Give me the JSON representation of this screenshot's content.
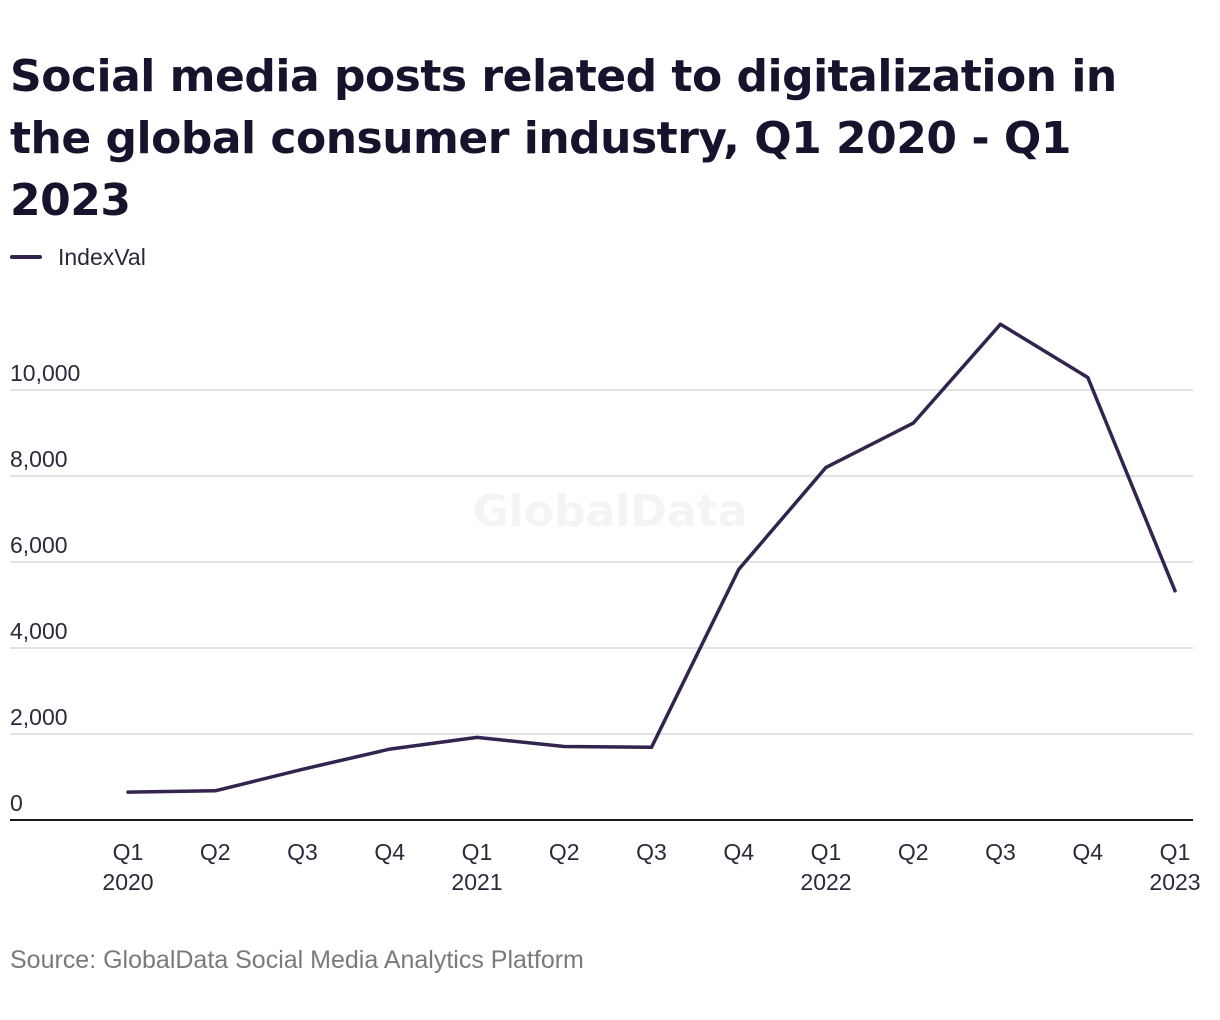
{
  "chart_data": {
    "type": "line",
    "title": "Social media posts related to digitalization in the global consumer industry, Q1 2020 - Q1 2023",
    "categories": [
      [
        "Q1",
        "2020"
      ],
      [
        "Q2",
        ""
      ],
      [
        "Q3",
        ""
      ],
      [
        "Q4",
        ""
      ],
      [
        "Q1",
        "2021"
      ],
      [
        "Q2",
        ""
      ],
      [
        "Q3",
        ""
      ],
      [
        "Q4",
        ""
      ],
      [
        "Q1",
        "2022"
      ],
      [
        "Q2",
        ""
      ],
      [
        "Q3",
        ""
      ],
      [
        "Q4",
        ""
      ],
      [
        "Q1",
        "2023"
      ]
    ],
    "series": [
      {
        "name": "IndexVal",
        "color": "#33244f",
        "values": [
          650,
          680,
          1180,
          1650,
          1920,
          1710,
          1690,
          5830,
          8200,
          9230,
          11530,
          10290,
          5330
        ]
      }
    ],
    "ylim": [
      0,
      12000
    ],
    "yticks": [
      0,
      2000,
      4000,
      6000,
      8000,
      10000
    ],
    "ytick_labels": [
      "0",
      "2,000",
      "4,000",
      "6,000",
      "8,000",
      "10,000"
    ],
    "grid": true,
    "legend_position": "top-left",
    "watermark": "GlobalData",
    "source": "Source: GlobalData Social Media Analytics Platform"
  }
}
